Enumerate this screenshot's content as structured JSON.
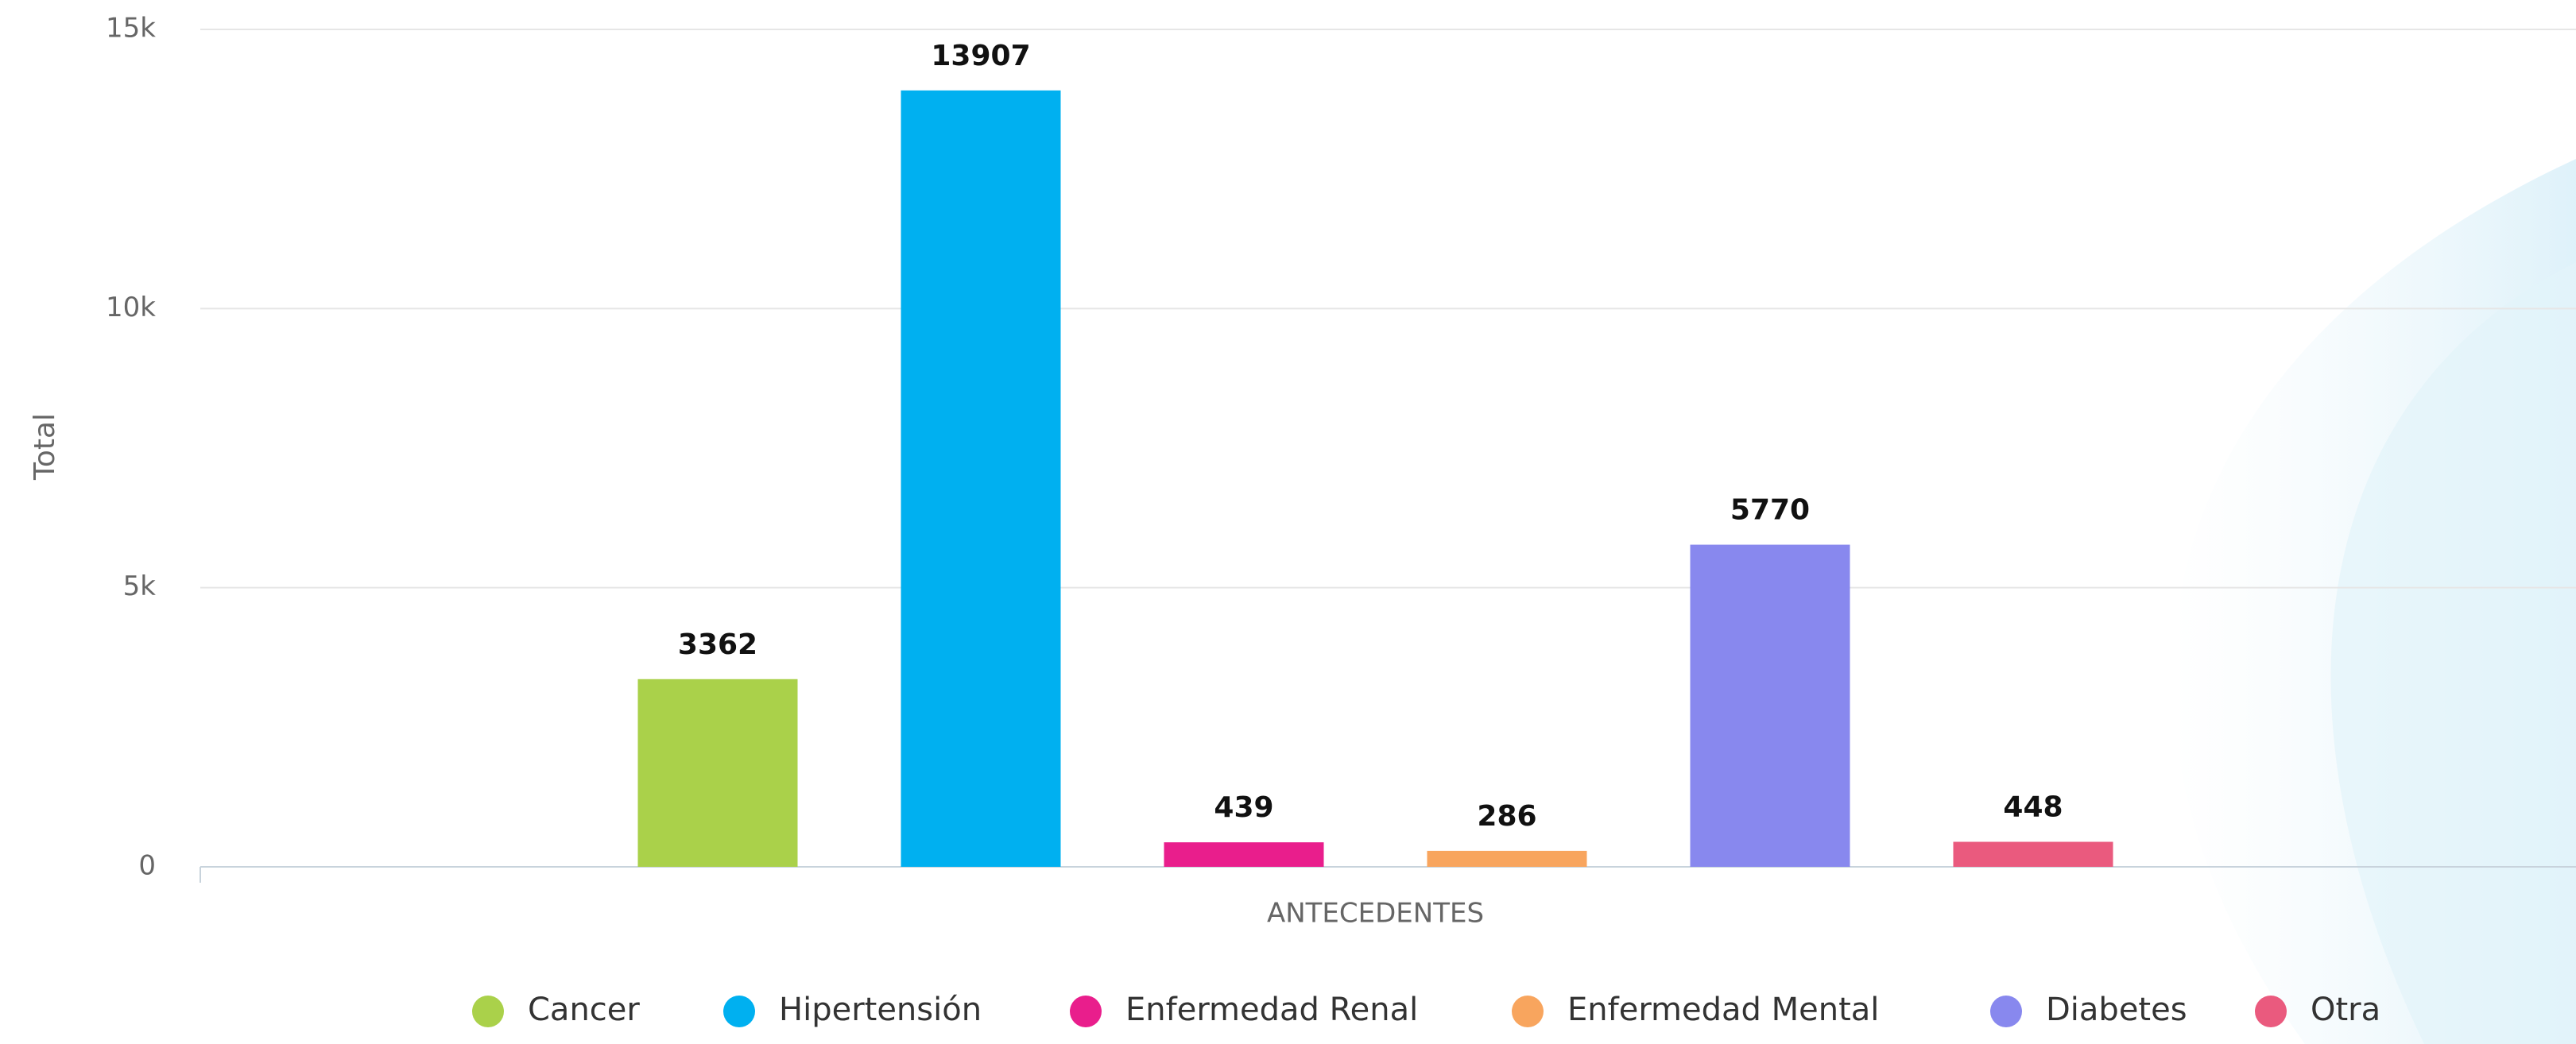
{
  "chart_data": {
    "type": "bar",
    "y_label": "Total",
    "categories": [
      "ANTECEDENTES"
    ],
    "series": [
      {
        "name": "Cancer",
        "color": "#aad14a",
        "values": [
          3362
        ]
      },
      {
        "name": "Hipertensión",
        "color": "#00b0f0",
        "values": [
          13907
        ]
      },
      {
        "name": "Enfermedad Renal",
        "color": "#e91e8c",
        "values": [
          439
        ]
      },
      {
        "name": "Enfermedad Mental",
        "color": "#f8a55e",
        "values": [
          286
        ]
      },
      {
        "name": "Diabetes",
        "color": "#8888ee",
        "values": [
          5770
        ]
      },
      {
        "name": "Otra",
        "color": "#ea5a7e",
        "values": [
          448
        ]
      }
    ],
    "ylim": [
      0,
      15000
    ],
    "yticks": [
      0,
      {
        "value": 5000,
        "label": "5k"
      },
      {
        "value": 10000,
        "label": "10k"
      },
      {
        "value": 15000,
        "label": "15k"
      }
    ],
    "grid": true,
    "legend": "bottom"
  }
}
